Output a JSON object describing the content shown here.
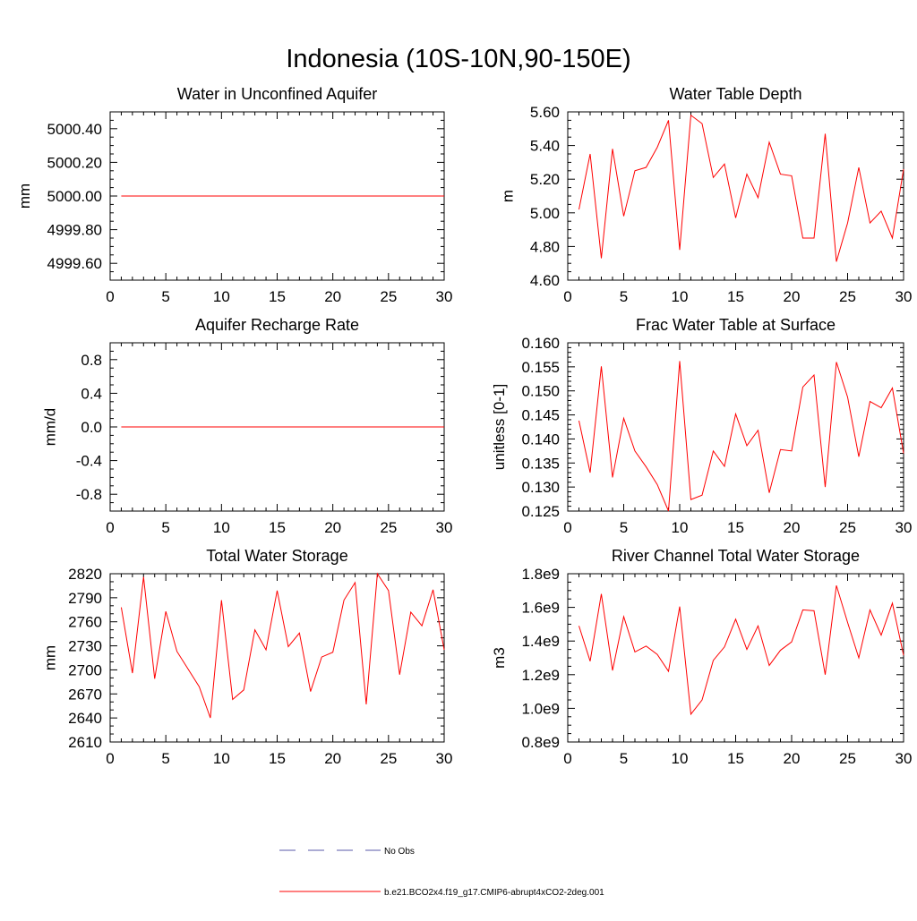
{
  "figure_title": "Indonesia (10S-10N,90-150E)",
  "colors": {
    "model_line": "#ff0000",
    "obs_line": "#5a5aa8",
    "axis": "#000000"
  },
  "legend": {
    "entries": [
      {
        "label": "No Obs",
        "style": "dashed",
        "color": "#5a5aa8"
      },
      {
        "label": "b.e21.BCO2x4.f19_g17.CMIP6-abrupt4xCO2-2deg.001",
        "style": "solid",
        "color": "#ff0000"
      }
    ]
  },
  "chart_data": [
    {
      "type": "line",
      "title": "Water in Unconfined Aquifer",
      "ylabel": "mm",
      "xlabel": "",
      "xlim": [
        0,
        30
      ],
      "ylim": [
        4999.5,
        5000.5
      ],
      "xticks": [
        0,
        5,
        10,
        15,
        20,
        25,
        30
      ],
      "xtick_labels": [
        "0",
        "5",
        "10",
        "15",
        "20",
        "25",
        "30"
      ],
      "yticks": [
        4999.6,
        4999.8,
        5000.0,
        5000.2,
        5000.4
      ],
      "ytick_labels": [
        "4999.60",
        "4999.80",
        "5000.00",
        "5000.20",
        "5000.40"
      ],
      "minor_y_step": 0.05,
      "x": [
        1,
        2,
        3,
        4,
        5,
        6,
        7,
        8,
        9,
        10,
        11,
        12,
        13,
        14,
        15,
        16,
        17,
        18,
        19,
        20,
        21,
        22,
        23,
        24,
        25,
        26,
        27,
        28,
        29,
        30
      ],
      "series": [
        {
          "name": "b.e21.BCO2x4.f19_g17.CMIP6-abrupt4xCO2-2deg.001",
          "values": [
            5000,
            5000,
            5000,
            5000,
            5000,
            5000,
            5000,
            5000,
            5000,
            5000,
            5000,
            5000,
            5000,
            5000,
            5000,
            5000,
            5000,
            5000,
            5000,
            5000,
            5000,
            5000,
            5000,
            5000,
            5000,
            5000,
            5000,
            5000,
            5000,
            5000
          ]
        }
      ]
    },
    {
      "type": "line",
      "title": "Water Table Depth",
      "ylabel": "m",
      "xlabel": "",
      "xlim": [
        0,
        30
      ],
      "ylim": [
        4.6,
        5.6
      ],
      "xticks": [
        0,
        5,
        10,
        15,
        20,
        25,
        30
      ],
      "xtick_labels": [
        "0",
        "5",
        "10",
        "15",
        "20",
        "25",
        "30"
      ],
      "yticks": [
        4.6,
        4.8,
        5.0,
        5.2,
        5.4,
        5.6
      ],
      "ytick_labels": [
        "4.60",
        "4.80",
        "5.00",
        "5.20",
        "5.40",
        "5.60"
      ],
      "minor_y_step": 0.05,
      "x": [
        1,
        2,
        3,
        4,
        5,
        6,
        7,
        8,
        9,
        10,
        11,
        12,
        13,
        14,
        15,
        16,
        17,
        18,
        19,
        20,
        21,
        22,
        23,
        24,
        25,
        26,
        27,
        28,
        29,
        30
      ],
      "series": [
        {
          "name": "b.e21.BCO2x4.f19_g17.CMIP6-abrupt4xCO2-2deg.001",
          "values": [
            5.02,
            5.35,
            4.73,
            5.38,
            4.98,
            5.25,
            5.27,
            5.39,
            5.55,
            4.78,
            5.58,
            5.53,
            5.21,
            5.29,
            4.97,
            5.23,
            5.09,
            5.42,
            5.23,
            5.22,
            4.85,
            4.85,
            5.47,
            4.71,
            4.94,
            5.27,
            4.94,
            5.01,
            4.85,
            5.26
          ]
        }
      ]
    },
    {
      "type": "line",
      "title": "Aquifer Recharge Rate",
      "ylabel": "mm/d",
      "xlabel": "",
      "xlim": [
        0,
        30
      ],
      "ylim": [
        -1.0,
        1.0
      ],
      "xticks": [
        0,
        5,
        10,
        15,
        20,
        25,
        30
      ],
      "xtick_labels": [
        "0",
        "5",
        "10",
        "15",
        "20",
        "25",
        "30"
      ],
      "yticks": [
        -0.8,
        -0.4,
        0.0,
        0.4,
        0.8
      ],
      "ytick_labels": [
        "-0.8",
        "-0.4",
        "0.0",
        "0.4",
        "0.8"
      ],
      "minor_y_step": 0.1,
      "x": [
        1,
        2,
        3,
        4,
        5,
        6,
        7,
        8,
        9,
        10,
        11,
        12,
        13,
        14,
        15,
        16,
        17,
        18,
        19,
        20,
        21,
        22,
        23,
        24,
        25,
        26,
        27,
        28,
        29,
        30
      ],
      "series": [
        {
          "name": "b.e21.BCO2x4.f19_g17.CMIP6-abrupt4xCO2-2deg.001",
          "values": [
            0,
            0,
            0,
            0,
            0,
            0,
            0,
            0,
            0,
            0,
            0,
            0,
            0,
            0,
            0,
            0,
            0,
            0,
            0,
            0,
            0,
            0,
            0,
            0,
            0,
            0,
            0,
            0,
            0,
            0
          ]
        }
      ]
    },
    {
      "type": "line",
      "title": "Frac Water Table at Surface",
      "ylabel": "unitless [0-1]",
      "xlabel": "",
      "xlim": [
        0,
        30
      ],
      "ylim": [
        0.125,
        0.16
      ],
      "xticks": [
        0,
        5,
        10,
        15,
        20,
        25,
        30
      ],
      "xtick_labels": [
        "0",
        "5",
        "10",
        "15",
        "20",
        "25",
        "30"
      ],
      "yticks": [
        0.125,
        0.13,
        0.135,
        0.14,
        0.145,
        0.15,
        0.155,
        0.16
      ],
      "ytick_labels": [
        "0.125",
        "0.130",
        "0.135",
        "0.140",
        "0.145",
        "0.150",
        "0.155",
        "0.160"
      ],
      "minor_y_step": 0.001,
      "x": [
        1,
        2,
        3,
        4,
        5,
        6,
        7,
        8,
        9,
        10,
        11,
        12,
        13,
        14,
        15,
        16,
        17,
        18,
        19,
        20,
        21,
        22,
        23,
        24,
        25,
        26,
        27,
        28,
        29,
        30
      ],
      "series": [
        {
          "name": "b.e21.BCO2x4.f19_g17.CMIP6-abrupt4xCO2-2deg.001",
          "values": [
            0.1438,
            0.133,
            0.1551,
            0.132,
            0.1443,
            0.1375,
            0.1342,
            0.1305,
            0.125,
            0.1562,
            0.1274,
            0.1283,
            0.1375,
            0.1343,
            0.1452,
            0.1386,
            0.1418,
            0.1288,
            0.1378,
            0.1375,
            0.1508,
            0.1533,
            0.13,
            0.156,
            0.1487,
            0.1363,
            0.1478,
            0.1465,
            0.1506,
            0.137
          ]
        }
      ]
    },
    {
      "type": "line",
      "title": "Total Water Storage",
      "ylabel": "mm",
      "xlabel": "",
      "xlim": [
        0,
        30
      ],
      "ylim": [
        2610,
        2820
      ],
      "xticks": [
        0,
        5,
        10,
        15,
        20,
        25,
        30
      ],
      "xtick_labels": [
        "0",
        "5",
        "10",
        "15",
        "20",
        "25",
        "30"
      ],
      "yticks": [
        2610,
        2640,
        2670,
        2700,
        2730,
        2760,
        2790,
        2820
      ],
      "ytick_labels": [
        "2610",
        "2640",
        "2670",
        "2700",
        "2730",
        "2760",
        "2790",
        "2820"
      ],
      "minor_y_step": 10,
      "x": [
        1,
        2,
        3,
        4,
        5,
        6,
        7,
        8,
        9,
        10,
        11,
        12,
        13,
        14,
        15,
        16,
        17,
        18,
        19,
        20,
        21,
        22,
        23,
        24,
        25,
        26,
        27,
        28,
        29,
        30
      ],
      "series": [
        {
          "name": "b.e21.BCO2x4.f19_g17.CMIP6-abrupt4xCO2-2deg.001",
          "values": [
            2778,
            2696,
            2816,
            2689,
            2773,
            2723,
            2701,
            2679,
            2640,
            2787,
            2663,
            2675,
            2750,
            2725,
            2799,
            2729,
            2746,
            2673,
            2716,
            2722,
            2787,
            2809,
            2657,
            2820,
            2799,
            2694,
            2772,
            2755,
            2800,
            2725
          ]
        }
      ]
    },
    {
      "type": "line",
      "title": "River Channel Total Water Storage",
      "ylabel": "m3",
      "xlabel": "",
      "xlim": [
        0,
        30
      ],
      "ylim": [
        800000000,
        1800000000
      ],
      "xticks": [
        0,
        5,
        10,
        15,
        20,
        25,
        30
      ],
      "xtick_labels": [
        "0",
        "5",
        "10",
        "15",
        "20",
        "25",
        "30"
      ],
      "yticks": [
        800000000,
        1000000000,
        1200000000,
        1400000000,
        1600000000,
        1800000000
      ],
      "ytick_labels": [
        "0.8e9",
        "1.0e9",
        "1.2e9",
        "1.4e9",
        "1.6e9",
        "1.8e9"
      ],
      "minor_y_step": 50000000,
      "x": [
        1,
        2,
        3,
        4,
        5,
        6,
        7,
        8,
        9,
        10,
        11,
        12,
        13,
        14,
        15,
        16,
        17,
        18,
        19,
        20,
        21,
        22,
        23,
        24,
        25,
        26,
        27,
        28,
        29,
        30
      ],
      "series": [
        {
          "name": "b.e21.BCO2x4.f19_g17.CMIP6-abrupt4xCO2-2deg.001",
          "values": [
            1490000000,
            1280000000,
            1680000000,
            1225000000,
            1545000000,
            1335000000,
            1370000000,
            1320000000,
            1220000000,
            1605000000,
            965000000,
            1050000000,
            1285000000,
            1365000000,
            1530000000,
            1350000000,
            1490000000,
            1255000000,
            1345000000,
            1395000000,
            1585000000,
            1580000000,
            1200000000,
            1730000000,
            1510000000,
            1300000000,
            1585000000,
            1435000000,
            1625000000,
            1315000000
          ]
        }
      ]
    }
  ]
}
